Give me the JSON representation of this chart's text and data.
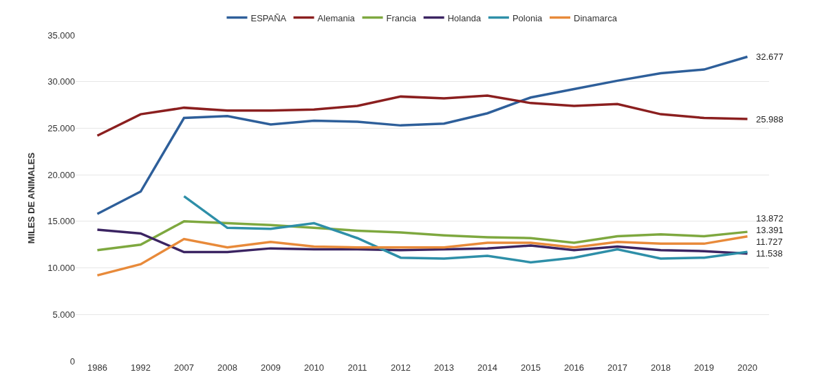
{
  "chart_data": {
    "type": "line",
    "ylabel": "MILES DE ANIMALES",
    "categories": [
      "1986",
      "1992",
      "2007",
      "2008",
      "2009",
      "2010",
      "2011",
      "2012",
      "2013",
      "2014",
      "2015",
      "2016",
      "2017",
      "2018",
      "2019",
      "2020"
    ],
    "series": [
      {
        "name": "ESPAÑA",
        "color": "#2e5f9a",
        "values": [
          15800,
          18200,
          26100,
          26300,
          25400,
          25800,
          25700,
          25300,
          25500,
          26600,
          28300,
          29200,
          30100,
          30900,
          31300,
          32677
        ],
        "value_labels": [
          null,
          null,
          null,
          null,
          null,
          null,
          null,
          null,
          null,
          null,
          null,
          null,
          null,
          null,
          null,
          "32.677"
        ]
      },
      {
        "name": "Alemania",
        "color": "#8b1f1f",
        "values": [
          24200,
          26500,
          27200,
          26900,
          26900,
          27000,
          27400,
          28400,
          28200,
          28500,
          27700,
          27400,
          27600,
          26500,
          26100,
          25988
        ],
        "value_labels": [
          null,
          null,
          null,
          null,
          null,
          null,
          null,
          null,
          null,
          null,
          null,
          null,
          null,
          null,
          null,
          "25.988"
        ]
      },
      {
        "name": "Francia",
        "color": "#7ea83f",
        "values": [
          11900,
          12500,
          15000,
          14800,
          14600,
          14300,
          14000,
          13800,
          13500,
          13300,
          13200,
          12700,
          13400,
          13600,
          13400,
          13872
        ],
        "value_labels": [
          null,
          null,
          null,
          null,
          null,
          null,
          null,
          null,
          null,
          null,
          null,
          null,
          null,
          null,
          null,
          "13.872"
        ]
      },
      {
        "name": "Holanda",
        "color": "#3b2462",
        "values": [
          14100,
          13700,
          11700,
          11700,
          12100,
          12000,
          12000,
          11900,
          12000,
          12100,
          12400,
          11900,
          12300,
          11900,
          11800,
          11538
        ],
        "value_labels": [
          null,
          null,
          null,
          null,
          null,
          null,
          null,
          null,
          null,
          null,
          null,
          null,
          null,
          null,
          null,
          "11.538"
        ]
      },
      {
        "name": "Polonia",
        "color": "#2e8fa8",
        "values": [
          null,
          null,
          17700,
          14300,
          14200,
          14800,
          13200,
          11100,
          11000,
          11300,
          10600,
          11100,
          12000,
          11000,
          11100,
          11727
        ],
        "value_labels": [
          null,
          null,
          null,
          null,
          null,
          null,
          null,
          null,
          null,
          null,
          null,
          null,
          null,
          null,
          null,
          "11.727"
        ]
      },
      {
        "name": "Dinamarca",
        "color": "#e88a3a",
        "values": [
          9200,
          10400,
          13100,
          12200,
          12800,
          12300,
          12200,
          12200,
          12200,
          12700,
          12700,
          12200,
          12800,
          12600,
          12600,
          13391
        ],
        "value_labels": [
          null,
          null,
          null,
          null,
          null,
          null,
          null,
          null,
          null,
          null,
          null,
          null,
          null,
          null,
          null,
          "13.391"
        ]
      }
    ],
    "ylim": [
      0,
      35000
    ],
    "yticks": [
      {
        "value": 0,
        "label": "0"
      },
      {
        "value": 5000,
        "label": "5.000"
      },
      {
        "value": 10000,
        "label": "10.000"
      },
      {
        "value": 15000,
        "label": "15.000"
      },
      {
        "value": 20000,
        "label": "20.000"
      },
      {
        "value": 25000,
        "label": "25.000"
      },
      {
        "value": 30000,
        "label": "30.000"
      },
      {
        "value": 35000,
        "label": "35.000"
      }
    ],
    "grid": "y",
    "legend": "top",
    "marker": "none",
    "line_style": "solid"
  }
}
